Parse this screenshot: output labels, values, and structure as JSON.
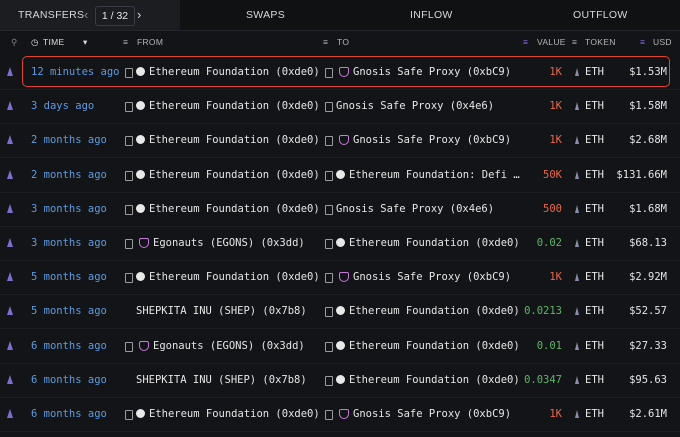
{
  "tabs": {
    "active": "TRANSFERS",
    "pagination": "1 / 32",
    "others": [
      "SWAPS",
      "INFLOW",
      "OUTFLOW"
    ]
  },
  "columns": {
    "time": "TIME",
    "from": "FROM",
    "to": "TO",
    "value": "VALUE",
    "token": "TOKEN",
    "usd": "USD"
  },
  "rows": [
    {
      "time": "12 minutes ago",
      "from": "Ethereum Foundation (0xde0)",
      "to": "Gnosis Safe Proxy (0xbC9)",
      "value": "1K",
      "value_color": "#e8684a",
      "token": "ETH",
      "usd": "$1.53M"
    },
    {
      "time": "3 days ago",
      "from": "Ethereum Foundation (0xde0)",
      "to": "Gnosis Safe Proxy (0x4e6)",
      "value": "1K",
      "value_color": "#e8684a",
      "token": "ETH",
      "usd": "$1.58M"
    },
    {
      "time": "2 months ago",
      "from": "Ethereum Foundation (0xde0)",
      "to": "Gnosis Safe Proxy (0xbC9)",
      "value": "1K",
      "value_color": "#e8684a",
      "token": "ETH",
      "usd": "$2.68M"
    },
    {
      "time": "2 months ago",
      "from": "Ethereum Foundation (0xde0)",
      "to": "Ethereum Foundation: Defi …",
      "value": "50K",
      "value_color": "#e8684a",
      "token": "ETH",
      "usd": "$131.66M"
    },
    {
      "time": "3 months ago",
      "from": "Ethereum Foundation (0xde0)",
      "to": "Gnosis Safe Proxy (0x4e6)",
      "value": "500",
      "value_color": "#e8684a",
      "token": "ETH",
      "usd": "$1.68M"
    },
    {
      "time": "3 months ago",
      "from": "Egonauts (EGONS) (0x3dd)",
      "to": "Ethereum Foundation (0xde0)",
      "value": "0.02",
      "value_color": "#5fb56a",
      "token": "ETH",
      "usd": "$68.13"
    },
    {
      "time": "5 months ago",
      "from": "Ethereum Foundation (0xde0)",
      "to": "Gnosis Safe Proxy (0xbC9)",
      "value": "1K",
      "value_color": "#e8684a",
      "token": "ETH",
      "usd": "$2.92M"
    },
    {
      "time": "5 months ago",
      "from": "SHEPKITA INU (SHEP) (0x7b8)",
      "to": "Ethereum Foundation (0xde0)",
      "value": "0.0213",
      "value_color": "#5fb56a",
      "token": "ETH",
      "usd": "$52.57"
    },
    {
      "time": "6 months ago",
      "from": "Egonauts (EGONS) (0x3dd)",
      "to": "Ethereum Foundation (0xde0)",
      "value": "0.01",
      "value_color": "#5fb56a",
      "token": "ETH",
      "usd": "$27.33"
    },
    {
      "time": "6 months ago",
      "from": "SHEPKITA INU (SHEP) (0x7b8)",
      "to": "Ethereum Foundation (0xde0)",
      "value": "0.0347",
      "value_color": "#5fb56a",
      "token": "ETH",
      "usd": "$95.63"
    },
    {
      "time": "6 months ago",
      "from": "Ethereum Foundation (0xde0)",
      "to": "Gnosis Safe Proxy (0xbC9)",
      "value": "1K",
      "value_color": "#e8684a",
      "token": "ETH",
      "usd": "$2.61M"
    }
  ]
}
